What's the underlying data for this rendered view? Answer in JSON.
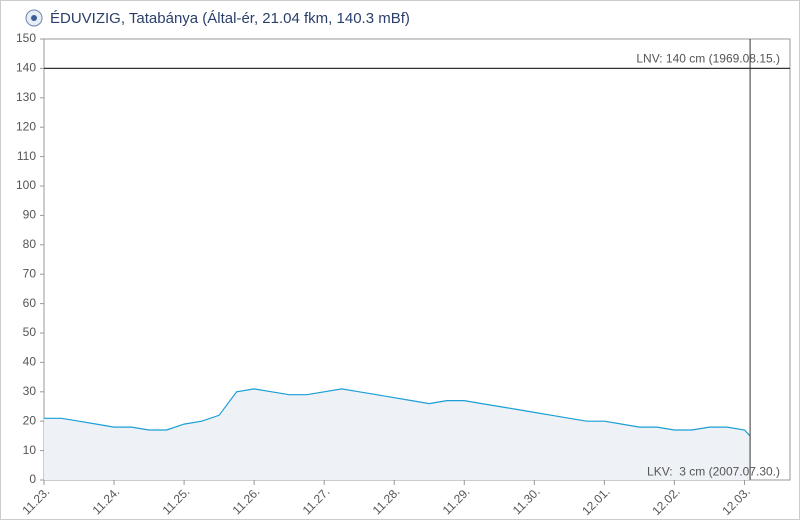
{
  "chart_data": {
    "type": "line",
    "title": "ÉDUVIZIG, Tatabánya (Által-ér, 21.04 fkm, 140.3 mBf)",
    "x": [
      0,
      0.25,
      0.5,
      0.75,
      1,
      1.25,
      1.5,
      1.75,
      2,
      2.25,
      2.5,
      2.75,
      3,
      3.25,
      3.5,
      3.75,
      4,
      4.25,
      4.5,
      4.75,
      5,
      5.25,
      5.5,
      5.75,
      6,
      6.25,
      6.5,
      6.75,
      7,
      7.25,
      7.5,
      7.75,
      8,
      8.25,
      8.5,
      8.75,
      9,
      9.25,
      9.5,
      9.75,
      10,
      10.08
    ],
    "values": [
      21,
      21,
      20,
      19,
      18,
      18,
      17,
      17,
      19,
      20,
      22,
      30,
      31,
      30,
      29,
      29,
      30,
      31,
      30,
      29,
      28,
      27,
      26,
      27,
      27,
      26,
      25,
      24,
      23,
      22,
      21,
      20,
      20,
      19,
      18,
      18,
      17,
      17,
      18,
      18,
      17,
      15
    ],
    "color": "#1a9fd6",
    "area_color": "#eef1f6",
    "xlim": [
      0,
      10.65
    ],
    "ylim": [
      0,
      150
    ],
    "xticks": [
      {
        "value": 0,
        "label": "11.23."
      },
      {
        "value": 1,
        "label": "11.24."
      },
      {
        "value": 2,
        "label": "11.25."
      },
      {
        "value": 3,
        "label": "11.26."
      },
      {
        "value": 4,
        "label": "11.27."
      },
      {
        "value": 5,
        "label": "11.28."
      },
      {
        "value": 6,
        "label": "11.29."
      },
      {
        "value": 7,
        "label": "11.30."
      },
      {
        "value": 8,
        "label": "12.01."
      },
      {
        "value": 9,
        "label": "12.02."
      },
      {
        "value": 10,
        "label": "12.03."
      }
    ],
    "yticks": [
      0,
      10,
      20,
      30,
      40,
      50,
      60,
      70,
      80,
      90,
      100,
      110,
      120,
      130,
      140,
      150
    ],
    "reference_lines": [
      {
        "value": 140,
        "label": "LNV: 140 cm (1969.08.15.)",
        "line": true
      },
      {
        "value": 3,
        "label": "LKV:  3 cm (2007.07.30.)",
        "line": false
      }
    ]
  }
}
